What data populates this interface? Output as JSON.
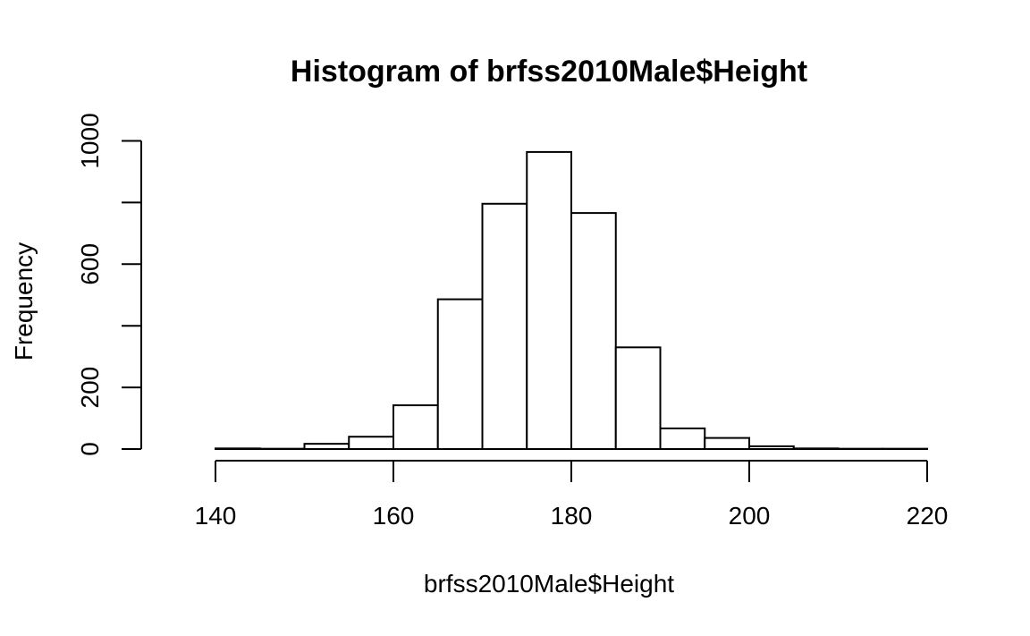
{
  "chart_data": {
    "type": "bar",
    "subtype": "histogram",
    "title": "Histogram of brfss2010Male$Height",
    "xlabel": "brfss2010Male$Height",
    "ylabel": "Frequency",
    "bin_width": 5,
    "bins": [
      {
        "start": 135,
        "end": 140,
        "value": 0
      },
      {
        "start": 140,
        "end": 145,
        "value": 2
      },
      {
        "start": 145,
        "end": 150,
        "value": 1
      },
      {
        "start": 150,
        "end": 155,
        "value": 17
      },
      {
        "start": 155,
        "end": 160,
        "value": 40
      },
      {
        "start": 160,
        "end": 165,
        "value": 142
      },
      {
        "start": 165,
        "end": 170,
        "value": 486
      },
      {
        "start": 170,
        "end": 175,
        "value": 796
      },
      {
        "start": 175,
        "end": 180,
        "value": 964
      },
      {
        "start": 180,
        "end": 185,
        "value": 766
      },
      {
        "start": 185,
        "end": 190,
        "value": 330
      },
      {
        "start": 190,
        "end": 195,
        "value": 67
      },
      {
        "start": 195,
        "end": 200,
        "value": 36
      },
      {
        "start": 200,
        "end": 205,
        "value": 9
      },
      {
        "start": 205,
        "end": 210,
        "value": 2
      },
      {
        "start": 210,
        "end": 215,
        "value": 1
      },
      {
        "start": 215,
        "end": 220,
        "value": 1
      }
    ],
    "x_ticks": [
      140,
      160,
      180,
      200,
      220
    ],
    "y_ticks": [
      0,
      200,
      400,
      600,
      800,
      1000
    ],
    "y_tick_labels": [
      "0",
      "200",
      "",
      "600",
      "",
      "1000"
    ],
    "xlim": [
      135,
      220
    ],
    "ylim": [
      0,
      1000
    ],
    "grid": false,
    "legend": "none"
  }
}
